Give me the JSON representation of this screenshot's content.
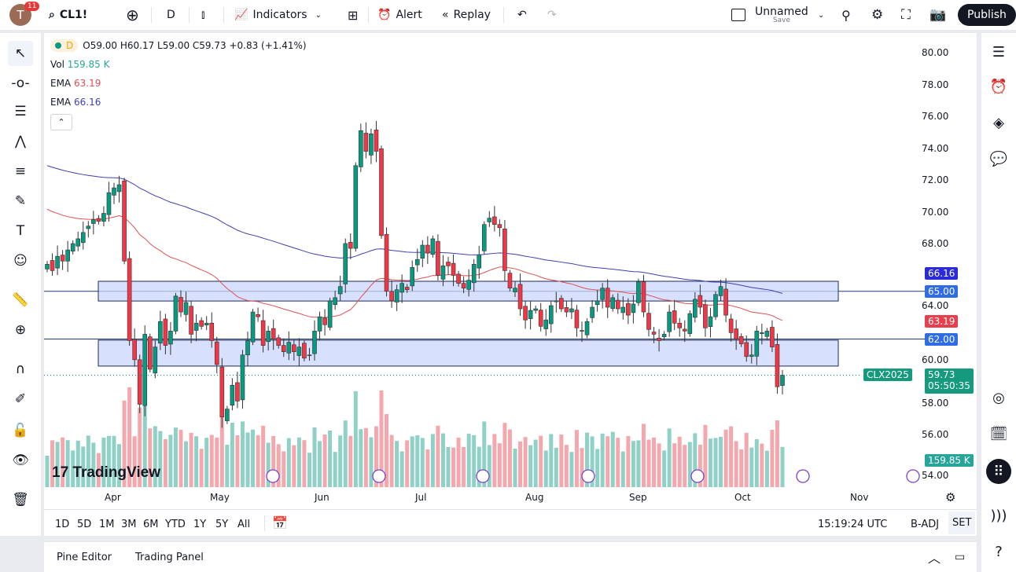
{
  "topbar": {
    "avatar_letter": "T",
    "notifications": "11",
    "symbol": "CL1!",
    "interval": "D",
    "indicators": "Indicators",
    "alert": "Alert",
    "replay": "Replay",
    "layout_name": "Unnamed",
    "layout_save": "Save",
    "publish": "Publish"
  },
  "legend": {
    "interval": "D",
    "ohlc": "O59.00 H60.17 L59.00 C59.73 +0.83 (+1.41%)",
    "vol_label": "Vol",
    "vol_value": "159.85 K",
    "ema1_label": "EMA",
    "ema1_value": "63.19",
    "ema2_label": "EMA",
    "ema2_value": "66.16"
  },
  "price_axis": {
    "ticks": [
      "80.00",
      "78.00",
      "76.00",
      "74.00",
      "72.00",
      "70.00",
      "68.00",
      "64.00",
      "60.00",
      "58.00",
      "56.00",
      "54.00"
    ],
    "tags": {
      "ema200": "66.16",
      "line1": "65.00",
      "ema50": "63.19",
      "line2": "62.00",
      "symbol": "CLX2025",
      "last": "59.73",
      "countdown": "05:50:35",
      "volume": "159.85 K"
    }
  },
  "time_axis": [
    "Apr",
    "May",
    "Jun",
    "Jul",
    "Aug",
    "Sep",
    "Oct",
    "Nov"
  ],
  "colors": {
    "up": "#089981",
    "down": "#f23645",
    "ema_fast": "#e05050",
    "ema_slow": "#3f3fb0",
    "zone": "#c9d6fb",
    "line": "#2962ff"
  },
  "zones": [
    {
      "top": 65.63,
      "bottom": 64.39
    },
    {
      "top": 61.93,
      "bottom": 60.3
    }
  ],
  "lines": [
    65.0,
    62.0
  ],
  "closes": [
    66.7,
    66.3,
    67.2,
    66.9,
    67.6,
    68.0,
    68.3,
    68.7,
    69.1,
    69.5,
    69.4,
    69.9,
    71.2,
    71.5,
    71.7,
    66.9,
    61.9,
    60.7,
    57.9,
    62.3,
    60.1,
    61.5,
    63.1,
    61.6,
    62.5,
    64.7,
    63.7,
    64.3,
    62.3,
    63.0,
    62.8,
    63.0,
    61.9,
    60.4,
    57.1,
    57.6,
    59.1,
    58.1,
    61.0,
    61.9,
    63.7,
    63.4,
    61.6,
    62.5,
    62.0,
    61.6,
    61.2,
    61.8,
    61.2,
    61.5,
    60.8,
    61.0,
    62.5,
    63.4,
    62.9,
    64.4,
    64.6,
    65.3,
    68.0,
    67.7,
    72.9,
    75.1,
    73.8,
    74.9,
    73.8,
    68.5,
    65.0,
    64.4,
    65.1,
    65.5,
    65.1,
    66.5,
    67.0,
    67.9,
    67.4,
    68.3,
    66.0,
    66.6,
    66.6,
    66.0,
    65.5,
    65.2,
    65.7,
    66.7,
    67.3,
    69.2,
    69.6,
    69.2,
    69.0,
    66.3,
    65.2,
    65.2,
    63.9,
    63.2,
    63.8,
    63.9,
    62.8,
    63.2,
    64.1,
    64.4,
    63.9,
    63.7,
    63.9,
    62.7,
    62.5,
    63.1,
    64.0,
    64.4,
    65.2,
    64.0,
    64.6,
    63.9,
    64.0,
    63.5,
    64.2,
    65.6,
    63.7,
    62.6,
    62.3,
    61.9,
    62.3,
    63.7,
    63.0,
    62.7,
    62.5,
    63.6,
    64.5,
    64.0,
    62.7,
    63.4,
    64.8,
    65.3,
    63.5,
    62.4,
    62.0,
    61.7,
    60.9,
    61.0,
    62.5,
    62.4,
    62.5,
    61.5,
    59.0,
    59.73
  ],
  "watermark": "TradingView",
  "clock": "15:19:24 UTC",
  "badj": "B-ADJ",
  "set": "SET",
  "ranges": [
    "1D",
    "5D",
    "1M",
    "3M",
    "6M",
    "YTD",
    "1Y",
    "5Y",
    "All"
  ],
  "bottom_tabs": [
    "Pine Editor",
    "Trading Panel"
  ]
}
